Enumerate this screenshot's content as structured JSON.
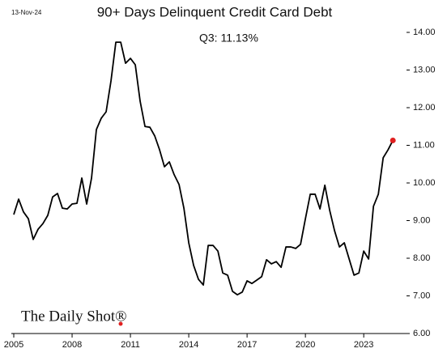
{
  "chart_data": {
    "type": "line",
    "title": "90+ Days Delinquent Credit Card Debt",
    "date_label": "13-Nov-24",
    "annotation": "Q3:   11.13%",
    "source": "The Daily Shot®",
    "x": [
      2005,
      2005.25,
      2005.5,
      2005.75,
      2006,
      2006.25,
      2006.5,
      2006.75,
      2007,
      2007.25,
      2007.5,
      2007.75,
      2008,
      2008.25,
      2008.5,
      2008.75,
      2009,
      2009.25,
      2009.5,
      2009.75,
      2010,
      2010.25,
      2010.5,
      2010.75,
      2011,
      2011.25,
      2011.5,
      2011.75,
      2012,
      2012.25,
      2012.5,
      2012.75,
      2013,
      2013.25,
      2013.5,
      2013.75,
      2014,
      2014.25,
      2014.5,
      2014.75,
      2015,
      2015.25,
      2015.5,
      2015.75,
      2016,
      2016.25,
      2016.5,
      2016.75,
      2017,
      2017.25,
      2017.5,
      2017.75,
      2018,
      2018.25,
      2018.5,
      2018.75,
      2019,
      2019.25,
      2019.5,
      2019.75,
      2020,
      2020.25,
      2020.5,
      2020.75,
      2021,
      2021.25,
      2021.5,
      2021.75,
      2022,
      2022.25,
      2022.5,
      2022.75,
      2023,
      2023.25,
      2023.5,
      2023.75,
      2024,
      2024.25,
      2024.5
    ],
    "series": [
      {
        "name": "90+ Days Delinquent",
        "color": "#000000",
        "values": [
          9.16,
          9.57,
          9.23,
          9.05,
          8.5,
          8.77,
          8.92,
          9.14,
          9.63,
          9.72,
          9.33,
          9.31,
          9.44,
          9.46,
          10.13,
          9.44,
          10.13,
          11.42,
          11.72,
          11.89,
          12.71,
          13.74,
          13.74,
          13.18,
          13.31,
          13.14,
          12.17,
          11.5,
          11.48,
          11.25,
          10.88,
          10.43,
          10.56,
          10.22,
          9.96,
          9.33,
          8.41,
          7.81,
          7.44,
          7.29,
          8.34,
          8.34,
          8.19,
          7.61,
          7.55,
          7.12,
          7.03,
          7.1,
          7.4,
          7.33,
          7.42,
          7.51,
          7.96,
          7.85,
          7.91,
          7.76,
          8.3,
          8.3,
          8.26,
          8.37,
          9.05,
          9.7,
          9.7,
          9.31,
          9.94,
          9.27,
          8.73,
          8.3,
          8.41,
          7.98,
          7.55,
          7.61,
          8.19,
          7.98,
          9.38,
          9.7,
          10.67,
          10.88,
          11.13
        ]
      }
    ],
    "highlight_color": "#e02020",
    "xlim": [
      2004.875,
      2025.2
    ],
    "xticks": [
      2005,
      2008,
      2011,
      2014,
      2017,
      2020,
      2023
    ],
    "ylim": [
      6,
      14
    ],
    "yticks": [
      {
        "value": 6,
        "label": "6.00"
      },
      {
        "value": 7,
        "label": "7.00"
      },
      {
        "value": 8,
        "label": "8.00"
      },
      {
        "value": 9,
        "label": "9.00"
      },
      {
        "value": 10,
        "label": "10.00"
      },
      {
        "value": 11,
        "label": "11.00"
      },
      {
        "value": 12,
        "label": "12.00"
      },
      {
        "value": 13,
        "label": "13.00"
      },
      {
        "value": 14,
        "label": "14.00"
      }
    ]
  }
}
